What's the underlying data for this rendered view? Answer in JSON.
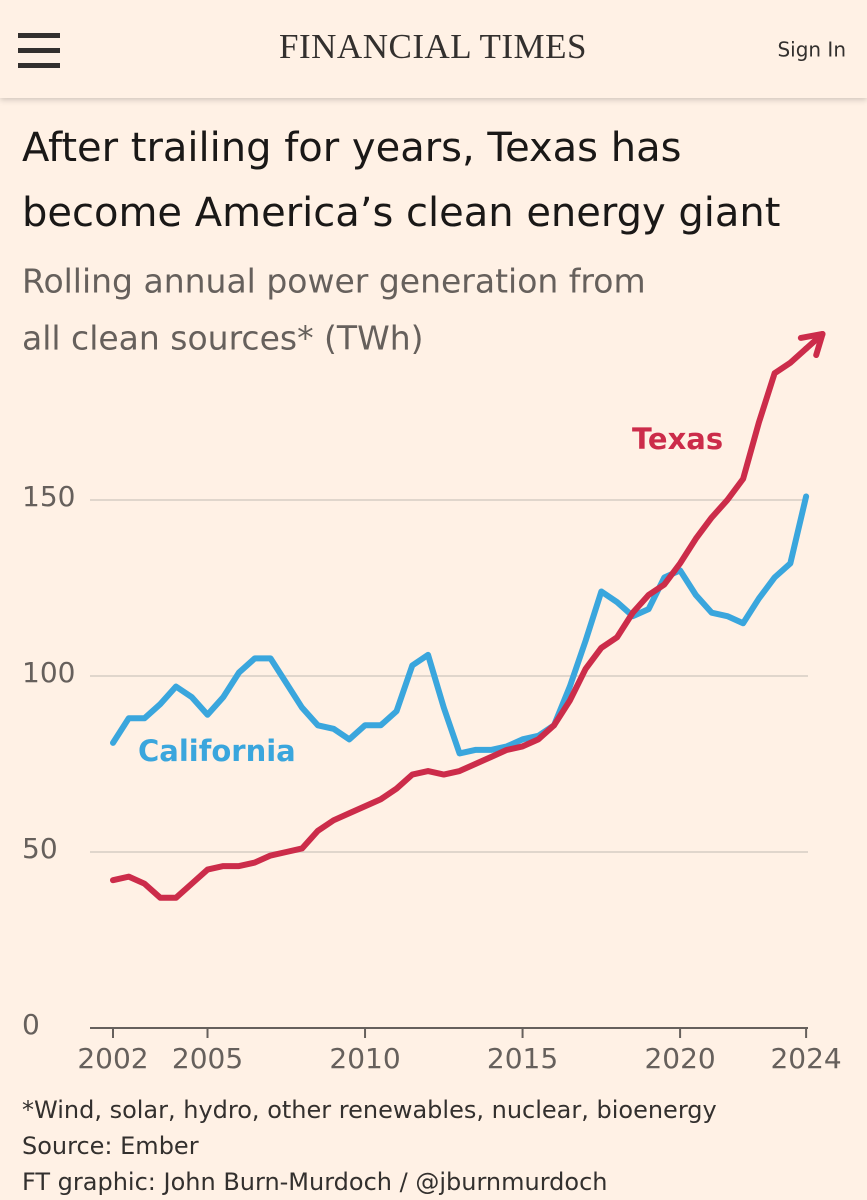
{
  "header": {
    "logo": "FINANCIAL TIMES",
    "sign_in": "Sign In"
  },
  "chart_data": {
    "type": "line",
    "title": [
      "After trailing for years, Texas has",
      "become America’s clean energy giant"
    ],
    "subtitle": [
      "Rolling annual power generation from",
      "all clean sources* (TWh)"
    ],
    "x": [
      2002,
      2002.5,
      2003,
      2003.5,
      2004,
      2004.5,
      2005,
      2005.5,
      2006,
      2006.5,
      2007,
      2007.5,
      2008,
      2008.5,
      2009,
      2009.5,
      2010,
      2010.5,
      2011,
      2011.5,
      2012,
      2012.5,
      2013,
      2013.5,
      2014,
      2014.5,
      2015,
      2015.5,
      2016,
      2016.5,
      2017,
      2017.5,
      2018,
      2018.5,
      2019,
      2019.5,
      2020,
      2020.5,
      2021,
      2021.5,
      2022,
      2022.5,
      2023,
      2023.5,
      2024
    ],
    "series": [
      {
        "name": "California",
        "color": "#3aa6dd",
        "values": [
          81,
          88,
          88,
          92,
          97,
          94,
          89,
          94,
          101,
          105,
          105,
          98,
          91,
          86,
          85,
          82,
          86,
          86,
          90,
          103,
          106,
          91,
          78,
          79,
          79,
          80,
          82,
          83,
          86,
          97,
          110,
          124,
          121,
          117,
          119,
          128,
          130,
          123,
          118,
          117,
          115,
          122,
          128,
          132,
          151
        ]
      },
      {
        "name": "Texas",
        "color": "#cc2c4a",
        "values": [
          42,
          43,
          41,
          37,
          37,
          41,
          45,
          46,
          46,
          47,
          49,
          50,
          51,
          56,
          59,
          61,
          63,
          65,
          68,
          72,
          73,
          72,
          73,
          75,
          77,
          79,
          80,
          82,
          86,
          93,
          102,
          108,
          111,
          118,
          123,
          126,
          132,
          139,
          145,
          150,
          156,
          172,
          186,
          189,
          193
        ]
      }
    ],
    "xlim": [
      2001.27,
      2024.06
    ],
    "xticks": [
      2002,
      2005,
      2010,
      2015,
      2020,
      2024
    ],
    "ylim": [
      0,
      200
    ],
    "yticks": [
      0,
      50,
      100,
      150
    ],
    "grid": true,
    "notes": [
      "*Wind, solar, hydro, other renewables, nuclear, bioenergy",
      "Source: Ember",
      "FT graphic: John Burn-Murdoch / @jburnmurdoch"
    ]
  }
}
